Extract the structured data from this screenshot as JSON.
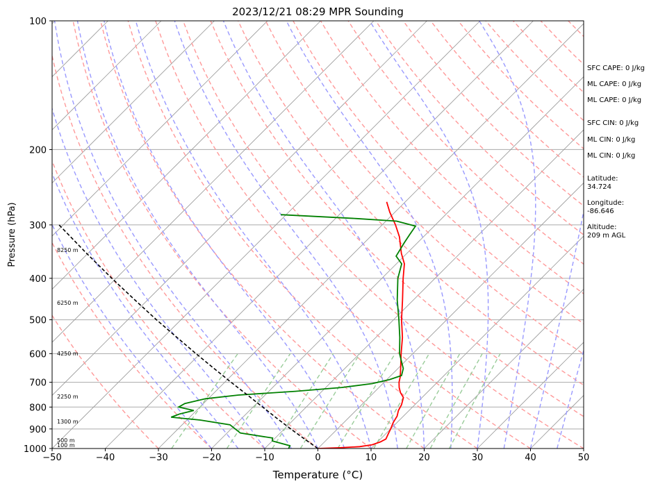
{
  "chart_data": {
    "type": "line",
    "title": "2023/12/21 08:29 MPR Sounding",
    "xlabel": "Temperature (°C)",
    "ylabel": "Pressure (hPa)",
    "xlim": [
      -50,
      50
    ],
    "ylim": [
      1000,
      100
    ],
    "y_scale": "log",
    "x_ticks": [
      -50,
      -40,
      -30,
      -20,
      -10,
      0,
      10,
      20,
      30,
      40,
      50
    ],
    "x_tick_labels": [
      "−50",
      "−40",
      "−30",
      "−20",
      "−10",
      "0",
      "10",
      "20",
      "30",
      "40",
      "50"
    ],
    "y_ticks": [
      1000,
      900,
      800,
      700,
      600,
      500,
      400,
      300,
      200,
      100
    ],
    "y_tick_labels": [
      "1000",
      "900",
      "800",
      "700",
      "600",
      "500",
      "400",
      "300",
      "200",
      "100"
    ],
    "grid": true,
    "skew": true,
    "series": [
      {
        "key": "temperature",
        "color": "#ff0000",
        "points": [
          [
            1000,
            0.0
          ],
          [
            996,
            4.0
          ],
          [
            990,
            7.5
          ],
          [
            980,
            9.5
          ],
          [
            965,
            10.5
          ],
          [
            950,
            11.0
          ],
          [
            925,
            10.5
          ],
          [
            900,
            10.0
          ],
          [
            870,
            9.3
          ],
          [
            840,
            8.8
          ],
          [
            815,
            8.0
          ],
          [
            790,
            7.5
          ],
          [
            760,
            6.5
          ],
          [
            740,
            5.0
          ],
          [
            720,
            3.8
          ],
          [
            700,
            2.8
          ],
          [
            680,
            2.0
          ],
          [
            650,
            0.5
          ],
          [
            600,
            -2.2
          ],
          [
            550,
            -5.0
          ],
          [
            500,
            -8.5
          ],
          [
            450,
            -12.0
          ],
          [
            400,
            -16.0
          ],
          [
            370,
            -18.5
          ],
          [
            350,
            -21.0
          ],
          [
            320,
            -24.5
          ],
          [
            300,
            -27.5
          ],
          [
            280,
            -31.0
          ],
          [
            265,
            -33.5
          ]
        ]
      },
      {
        "key": "dewpoint",
        "color": "#008000",
        "points": [
          [
            1000,
            -5.5
          ],
          [
            985,
            -5.8
          ],
          [
            960,
            -10.0
          ],
          [
            945,
            -10.5
          ],
          [
            920,
            -17.5
          ],
          [
            880,
            -21.0
          ],
          [
            858,
            -27.5
          ],
          [
            845,
            -33.5
          ],
          [
            830,
            -32.5
          ],
          [
            815,
            -30.5
          ],
          [
            800,
            -34.0
          ],
          [
            785,
            -33.5
          ],
          [
            765,
            -30.5
          ],
          [
            750,
            -25.0
          ],
          [
            735,
            -15.0
          ],
          [
            720,
            -7.0
          ],
          [
            705,
            -2.0
          ],
          [
            690,
            0.5
          ],
          [
            675,
            2.0
          ],
          [
            650,
            1.0
          ],
          [
            600,
            -2.5
          ],
          [
            550,
            -5.5
          ],
          [
            500,
            -9.0
          ],
          [
            450,
            -13.0
          ],
          [
            400,
            -17.0
          ],
          [
            370,
            -19.0
          ],
          [
            355,
            -21.5
          ],
          [
            330,
            -22.5
          ],
          [
            316,
            -23.0
          ],
          [
            302,
            -23.5
          ],
          [
            294,
            -28.0
          ],
          [
            290,
            -36.0
          ],
          [
            284,
            -51.0
          ]
        ]
      },
      {
        "key": "parcel",
        "color": "#000000",
        "dashed": true,
        "points": [
          [
            1000,
            0.0
          ],
          [
            950,
            -4.3
          ],
          [
            900,
            -8.8
          ],
          [
            850,
            -13.4
          ],
          [
            800,
            -18.2
          ],
          [
            750,
            -23.3
          ],
          [
            700,
            -28.8
          ],
          [
            650,
            -34.6
          ],
          [
            600,
            -40.8
          ],
          [
            550,
            -47.4
          ],
          [
            500,
            -54.6
          ],
          [
            450,
            -62.3
          ],
          [
            400,
            -70.8
          ],
          [
            350,
            -80.2
          ],
          [
            300,
            -90.8
          ]
        ]
      }
    ],
    "height_labels": [
      {
        "p": 1000,
        "text": "100 m"
      },
      {
        "p": 975,
        "text": "500 m"
      },
      {
        "p": 880,
        "text": "1300 m"
      },
      {
        "p": 770,
        "text": "2250 m"
      },
      {
        "p": 610,
        "text": "4250 m"
      },
      {
        "p": 465,
        "text": "6250 m"
      },
      {
        "p": 350,
        "text": "8250 m"
      }
    ],
    "annotations": {
      "sfc_cape": "SFC CAPE: 0 J/kg",
      "ml_cape_1": "ML CAPE: 0 J/kg",
      "ml_cape_2": "ML CAPE: 0 J/kg",
      "sfc_cin": "SFC CIN: 0 J/kg",
      "ml_cin_1": "ML CIN: 0 J/kg",
      "ml_cin_2": "ML CIN: 0 J/kg",
      "latitude": "Latitude:\n34.724",
      "longitude": "Longitude:\n-86.646",
      "altitude": "Altitude:\n209 m AGL"
    },
    "colors": {
      "dry_adiabats": "#ff9999",
      "moist_adiabats": "#9999ff",
      "mixing_ratio": "#99cc99",
      "isotherms": "#999999"
    }
  }
}
